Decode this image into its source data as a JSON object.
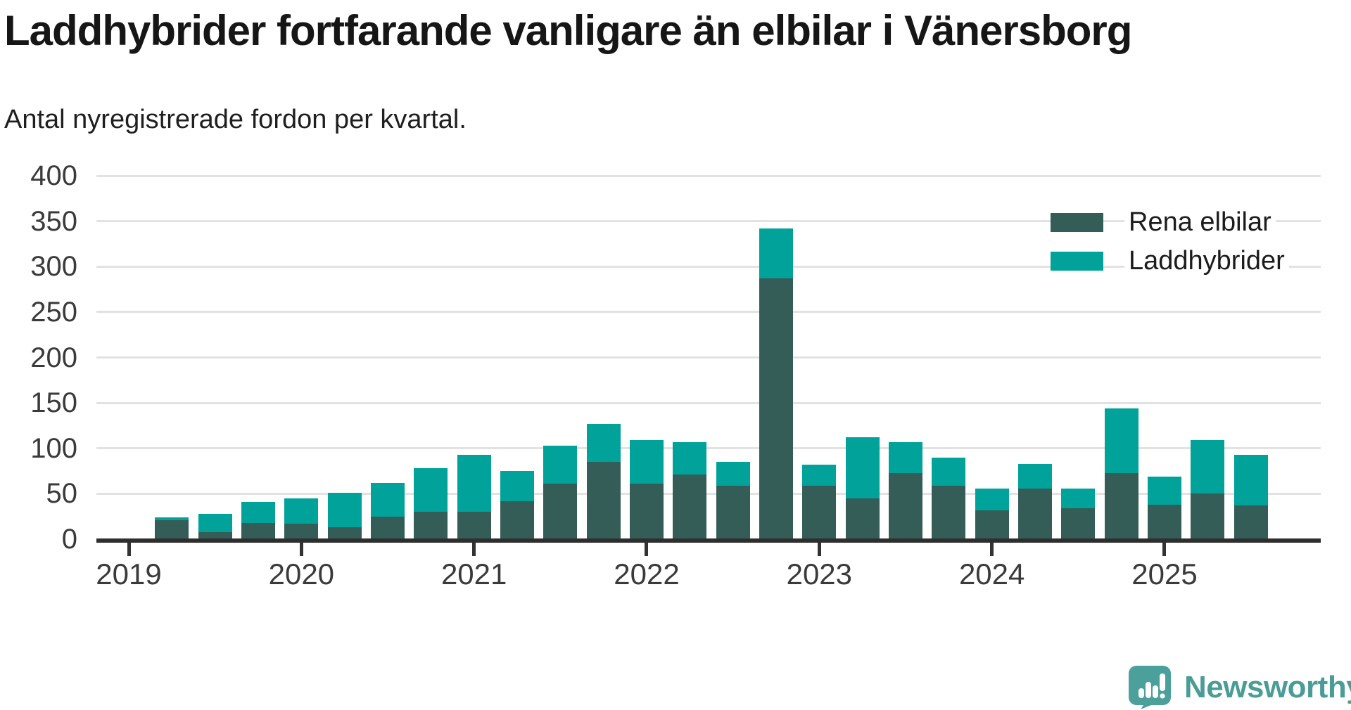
{
  "header": {
    "title": "Laddhybrider fortfarande vanligare än elbilar i Vänersborg",
    "subtitle": "Antal nyregistrerade fordon per kvartal."
  },
  "colors": {
    "rena_elbilar": "#355d57",
    "laddhybrider": "#00a29a",
    "gridline": "#e2e2e2",
    "axis": "#2e2e2e",
    "brand_teal": "#4a9d96",
    "brand_icon_teal": "#4ca09c"
  },
  "legend": {
    "items": [
      {
        "label": "Rena elbilar",
        "color": "#355d57"
      },
      {
        "label": "Laddhybrider",
        "color": "#00a29a"
      }
    ]
  },
  "chart_data": {
    "type": "bar",
    "stacked": true,
    "title": "Laddhybrider fortfarande vanligare än elbilar i Vänersborg",
    "subtitle": "Antal nyregistrerade fordon per kvartal.",
    "xlabel": "",
    "ylabel": "",
    "ylim": [
      0,
      400
    ],
    "yticks": [
      0,
      50,
      100,
      150,
      200,
      250,
      300,
      350,
      400
    ],
    "grid": true,
    "legend_position": "top-right",
    "year_ticks": [
      2019,
      2020,
      2021,
      2022,
      2023,
      2024,
      2025
    ],
    "categories": [
      "2019Q2",
      "2019Q3",
      "2019Q4",
      "2020Q1",
      "2020Q2",
      "2020Q3",
      "2020Q4",
      "2021Q1",
      "2021Q2",
      "2021Q3",
      "2021Q4",
      "2022Q1",
      "2022Q2",
      "2022Q3",
      "2022Q4",
      "2023Q1",
      "2023Q2",
      "2023Q3",
      "2023Q4",
      "2024Q1",
      "2024Q2",
      "2024Q3",
      "2024Q4",
      "2025Q1",
      "2025Q2",
      "2025Q3"
    ],
    "series": [
      {
        "name": "Rena elbilar",
        "color": "#355d57",
        "values": [
          21,
          8,
          18,
          17,
          13,
          25,
          30,
          30,
          42,
          61,
          85,
          61,
          71,
          59,
          287,
          59,
          45,
          73,
          59,
          32,
          56,
          34,
          73,
          38,
          50,
          37
        ]
      },
      {
        "name": "Laddhybrider",
        "color": "#00a29a",
        "values": [
          3,
          20,
          23,
          28,
          38,
          37,
          48,
          63,
          33,
          42,
          42,
          48,
          36,
          26,
          55,
          23,
          67,
          34,
          31,
          24,
          27,
          22,
          71,
          31,
          59,
          56
        ]
      }
    ],
    "totals": [
      24,
      28,
      41,
      45,
      51,
      62,
      78,
      93,
      75,
      103,
      127,
      109,
      107,
      85,
      342,
      82,
      112,
      107,
      90,
      56,
      83,
      56,
      144,
      69,
      109,
      93
    ]
  },
  "branding": {
    "wordmark": "Newsworthy"
  }
}
